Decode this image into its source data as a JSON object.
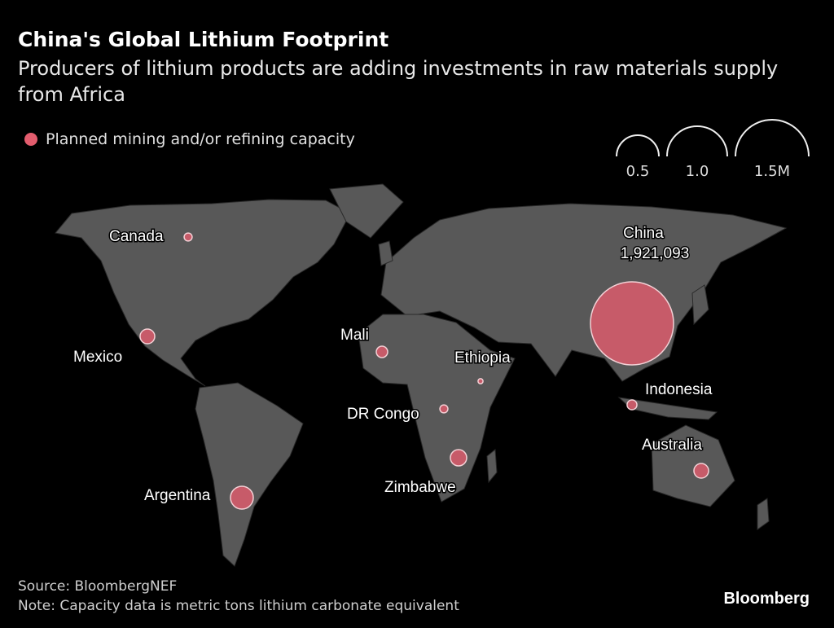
{
  "title": "China's Global Lithium Footprint",
  "subtitle": "Producers of lithium products are adding investments in raw materials supply from Africa",
  "legend": {
    "label": "Planned mining and/or refining capacity",
    "color": "#e35d6e"
  },
  "size_legend": [
    "0.5",
    "1.0",
    "1.5M"
  ],
  "source": "Source: BloombergNEF",
  "note": "Note: Capacity data is metric tons lithium carbonate equivalent",
  "logo": "Bloomberg",
  "chart_data": {
    "type": "bubble-map",
    "unit": "metric tons lithium carbonate equivalent",
    "size_legend_values": [
      500000,
      1000000,
      1500000
    ],
    "points": [
      {
        "label": "China",
        "value_label": "1,921,093",
        "value": 1921093
      },
      {
        "label": "Argentina",
        "value": 145000
      },
      {
        "label": "Zimbabwe",
        "value": 74000
      },
      {
        "label": "Mexico",
        "value": 60000
      },
      {
        "label": "Australia",
        "value": 60000
      },
      {
        "label": "Mali",
        "value": 36000
      },
      {
        "label": "Indonesia",
        "value": 27000
      },
      {
        "label": "Canada",
        "value": 18000
      },
      {
        "label": "DR Congo",
        "value": 18000
      },
      {
        "label": "Ethiopia",
        "value": 7000
      }
    ]
  }
}
